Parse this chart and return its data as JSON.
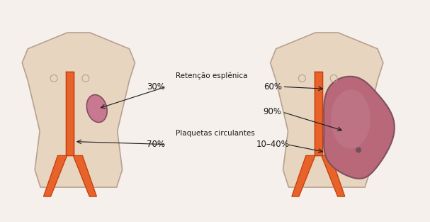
{
  "bg_color": "#f5f0eb",
  "body_color": "#e8d5c0",
  "body_outline": "#b8a090",
  "vessel_color": "#e8632a",
  "vessel_outline": "#c04010",
  "spleen_small_color": "#c87890",
  "spleen_large_color": "#b86878",
  "spleen_outline": "#805060",
  "text_color": "#1a1a1a",
  "line_color": "#1a1a1a",
  "label_retencao": "Retenção esplênica",
  "label_plaquetas": "Plaquetas circulantes",
  "pct_30": "30%",
  "pct_70": "70%",
  "pct_60": "60%",
  "pct_90": "90%",
  "pct_1040": "10–40%"
}
